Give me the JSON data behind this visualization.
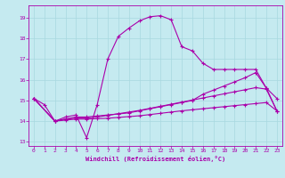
{
  "title": "",
  "xlabel": "Windchill (Refroidissement éolien,°C)",
  "ylabel": "",
  "xlim": [
    -0.5,
    23.5
  ],
  "ylim": [
    12.8,
    19.6
  ],
  "yticks": [
    13,
    14,
    15,
    16,
    17,
    18,
    19
  ],
  "xticks": [
    0,
    1,
    2,
    3,
    4,
    5,
    6,
    7,
    8,
    9,
    10,
    11,
    12,
    13,
    14,
    15,
    16,
    17,
    18,
    19,
    20,
    21,
    22,
    23
  ],
  "background_color": "#c5eaf0",
  "grid_color": "#a8d8e0",
  "line_color": "#aa00aa",
  "line1_x": [
    0,
    1,
    2,
    3,
    4,
    5,
    6,
    7,
    8,
    9,
    10,
    11,
    12,
    13,
    14,
    15,
    16,
    17,
    18,
    19,
    20,
    21,
    22,
    23
  ],
  "line1_y": [
    15.1,
    14.8,
    14.0,
    14.2,
    14.3,
    13.2,
    14.8,
    17.0,
    18.1,
    18.5,
    18.85,
    19.05,
    19.1,
    18.9,
    17.6,
    17.4,
    16.8,
    16.5,
    16.5,
    16.5,
    16.5,
    16.5,
    15.6,
    15.1
  ],
  "line2_x": [
    0,
    2,
    3,
    4,
    5,
    6,
    7,
    8,
    9,
    10,
    11,
    12,
    13,
    14,
    15,
    16,
    17,
    18,
    19,
    20,
    21,
    22,
    23
  ],
  "line2_y": [
    15.1,
    14.0,
    14.1,
    14.2,
    14.2,
    14.25,
    14.3,
    14.35,
    14.4,
    14.5,
    14.6,
    14.7,
    14.8,
    14.9,
    15.0,
    15.3,
    15.5,
    15.7,
    15.9,
    16.1,
    16.35,
    15.6,
    14.5
  ],
  "line3_x": [
    0,
    2,
    3,
    4,
    5,
    6,
    7,
    8,
    9,
    10,
    11,
    12,
    13,
    14,
    15,
    16,
    17,
    18,
    19,
    20,
    21,
    22,
    23
  ],
  "line3_y": [
    15.1,
    14.0,
    14.1,
    14.15,
    14.15,
    14.2,
    14.28,
    14.36,
    14.44,
    14.52,
    14.62,
    14.72,
    14.82,
    14.92,
    15.02,
    15.12,
    15.22,
    15.32,
    15.42,
    15.52,
    15.62,
    15.55,
    14.5
  ],
  "line4_x": [
    0,
    2,
    3,
    4,
    5,
    6,
    7,
    8,
    9,
    10,
    11,
    12,
    13,
    14,
    15,
    16,
    17,
    18,
    19,
    20,
    21,
    22,
    23
  ],
  "line4_y": [
    15.1,
    14.0,
    14.05,
    14.1,
    14.1,
    14.12,
    14.14,
    14.18,
    14.22,
    14.26,
    14.32,
    14.38,
    14.44,
    14.5,
    14.55,
    14.6,
    14.65,
    14.7,
    14.75,
    14.8,
    14.85,
    14.9,
    14.5
  ]
}
